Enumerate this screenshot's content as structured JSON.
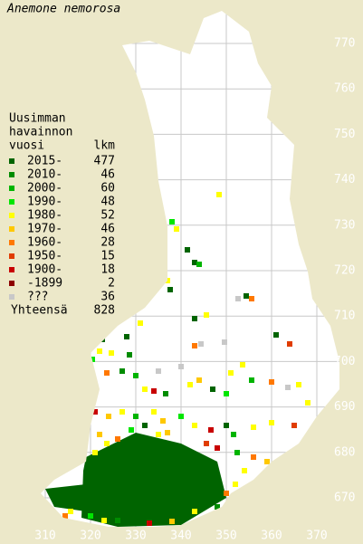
{
  "title": "Anemone nemorosa",
  "legend": {
    "header": [
      "Uusimman",
      "havainnon",
      "vuosi"
    ],
    "count_header": "lkm",
    "rows": [
      {
        "label": "2015-",
        "count": 477,
        "color": "#006400"
      },
      {
        "label": "2010-",
        "count": 46,
        "color": "#008c00"
      },
      {
        "label": "2000-",
        "count": 60,
        "color": "#00b400"
      },
      {
        "label": "1990-",
        "count": 48,
        "color": "#00e600"
      },
      {
        "label": "1980-",
        "count": 52,
        "color": "#ffff00"
      },
      {
        "label": "1970-",
        "count": 46,
        "color": "#ffc800"
      },
      {
        "label": "1960-",
        "count": 28,
        "color": "#ff7800"
      },
      {
        "label": "1950-",
        "count": 15,
        "color": "#e03c00"
      },
      {
        "label": "1900-",
        "count": 18,
        "color": "#c80000"
      },
      {
        "label": "-1899",
        "count": 2,
        "color": "#8c0000"
      },
      {
        "label": "???",
        "count": 36,
        "color": "#c8c8c8"
      }
    ],
    "total_label": "Yhteensä",
    "total": 828
  },
  "x_axis": {
    "labels": [
      310,
      320,
      330,
      340,
      350,
      360,
      370
    ]
  },
  "y_axis": {
    "labels": [
      770,
      760,
      750,
      740,
      730,
      720,
      710,
      700,
      690,
      680,
      670
    ]
  }
}
